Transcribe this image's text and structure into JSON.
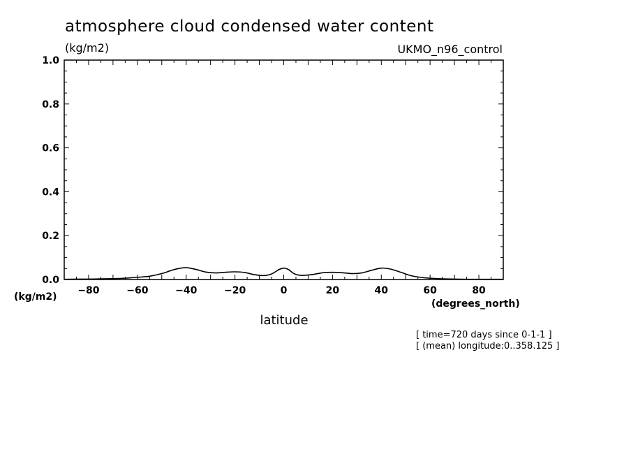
{
  "chart_data": {
    "type": "line",
    "title": "atmosphere cloud condensed water content",
    "title_units": "(kg/m2)",
    "model_label": "UKMO_n96_control",
    "ylabel_units": "(kg/m2)",
    "xlabel": "latitude",
    "xlabel_units": "(degrees_north)",
    "xlim": [
      -90,
      90
    ],
    "ylim": [
      0,
      1.0
    ],
    "xticks": [
      -80,
      -60,
      -40,
      -20,
      0,
      20,
      40,
      60,
      80
    ],
    "xtick_labels": [
      "-80",
      "-60",
      "-40",
      "-20",
      "0",
      "20",
      "40",
      "60",
      "80"
    ],
    "yticks": [
      0.0,
      0.2,
      0.4,
      0.6,
      0.8,
      1.0
    ],
    "ytick_labels": [
      "0.0",
      "0.2",
      "0.4",
      "0.6",
      "0.8",
      "1.0"
    ],
    "notes": [
      "[ time=720 days since 0-1-1 ]",
      "[ (mean) longitude:0..358.125 ]"
    ],
    "grid": false,
    "line_color": "#000000",
    "series": [
      {
        "x": [
          -90,
          -85,
          -80,
          -75,
          -70,
          -65,
          -60,
          -55,
          -50,
          -47,
          -44,
          -40,
          -36,
          -32,
          -28,
          -24,
          -20,
          -16,
          -12,
          -8,
          -5,
          -2,
          0,
          2,
          4,
          6,
          8,
          12,
          16,
          20,
          24,
          28,
          32,
          36,
          40,
          44,
          48,
          52,
          56,
          60,
          65,
          70,
          75,
          80,
          85,
          90
        ],
        "y": [
          0.001,
          0.002,
          0.002,
          0.003,
          0.004,
          0.006,
          0.01,
          0.015,
          0.027,
          0.038,
          0.048,
          0.054,
          0.046,
          0.034,
          0.03,
          0.033,
          0.035,
          0.032,
          0.022,
          0.018,
          0.025,
          0.045,
          0.052,
          0.045,
          0.028,
          0.02,
          0.019,
          0.023,
          0.031,
          0.033,
          0.031,
          0.027,
          0.03,
          0.042,
          0.052,
          0.047,
          0.033,
          0.018,
          0.01,
          0.006,
          0.003,
          0.002,
          0.001,
          0.001,
          0.001,
          0.001
        ]
      }
    ]
  }
}
